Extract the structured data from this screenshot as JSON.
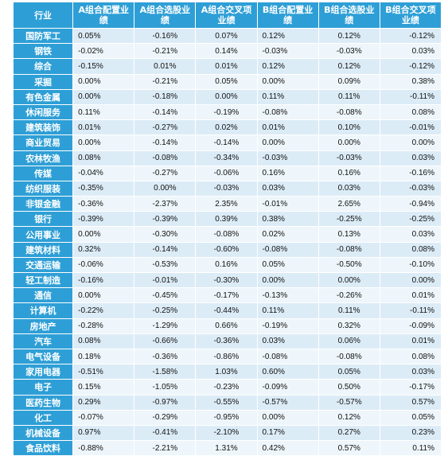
{
  "headers": [
    "行业",
    "A组合配置业绩",
    "A组合选股业绩",
    "A组合交叉项业绩",
    "B组合配置业绩",
    "B组合选股业绩",
    "B组合交叉项业绩"
  ],
  "rows": [
    {
      "industry": "国防军工",
      "values": [
        "0.05%",
        "-0.16%",
        "0.07%",
        "0.12%",
        "0.12%",
        "-0.12%"
      ]
    },
    {
      "industry": "钢铁",
      "values": [
        "-0.02%",
        "-0.21%",
        "0.14%",
        "-0.03%",
        "-0.03%",
        "0.03%"
      ]
    },
    {
      "industry": "综合",
      "values": [
        "-0.15%",
        "0.01%",
        "0.01%",
        "0.12%",
        "0.12%",
        "-0.12%"
      ]
    },
    {
      "industry": "采掘",
      "values": [
        "0.00%",
        "-0.21%",
        "0.05%",
        "0.00%",
        "0.09%",
        "0.38%"
      ]
    },
    {
      "industry": "有色金属",
      "values": [
        "0.00%",
        "-0.18%",
        "0.00%",
        "0.11%",
        "0.11%",
        "-0.11%"
      ]
    },
    {
      "industry": "休闲服务",
      "values": [
        "0.11%",
        "-0.14%",
        "-0.19%",
        "-0.08%",
        "-0.08%",
        "0.08%"
      ]
    },
    {
      "industry": "建筑装饰",
      "values": [
        "0.01%",
        "-0.27%",
        "0.02%",
        "0.01%",
        "0.10%",
        "-0.01%"
      ]
    },
    {
      "industry": "商业贸易",
      "values": [
        "0.00%",
        "-0.14%",
        "-0.14%",
        "0.00%",
        "0.00%",
        "0.00%"
      ]
    },
    {
      "industry": "农林牧渔",
      "values": [
        "0.08%",
        "-0.08%",
        "-0.34%",
        "-0.03%",
        "-0.03%",
        "0.03%"
      ]
    },
    {
      "industry": "传媒",
      "values": [
        "-0.04%",
        "-0.27%",
        "-0.06%",
        "0.16%",
        "0.16%",
        "-0.16%"
      ]
    },
    {
      "industry": "纺织服装",
      "values": [
        "-0.35%",
        "0.00%",
        "-0.03%",
        "0.03%",
        "0.03%",
        "-0.03%"
      ]
    },
    {
      "industry": "非银金融",
      "values": [
        "-0.36%",
        "-2.37%",
        "2.35%",
        "-0.01%",
        "2.65%",
        "-0.94%"
      ]
    },
    {
      "industry": "银行",
      "values": [
        "-0.39%",
        "-0.39%",
        "0.39%",
        "0.38%",
        "-0.25%",
        "-0.25%"
      ]
    },
    {
      "industry": "公用事业",
      "values": [
        "0.00%",
        "-0.30%",
        "-0.08%",
        "0.02%",
        "0.13%",
        "0.03%"
      ]
    },
    {
      "industry": "建筑材料",
      "values": [
        "0.32%",
        "-0.14%",
        "-0.60%",
        "-0.08%",
        "-0.08%",
        "0.08%"
      ]
    },
    {
      "industry": "交通运输",
      "values": [
        "-0.06%",
        "-0.53%",
        "0.16%",
        "0.05%",
        "-0.50%",
        "-0.10%"
      ]
    },
    {
      "industry": "轻工制造",
      "values": [
        "-0.16%",
        "-0.01%",
        "-0.30%",
        "0.00%",
        "0.00%",
        "0.00%"
      ]
    },
    {
      "industry": "通信",
      "values": [
        "0.00%",
        "-0.45%",
        "-0.17%",
        "-0.13%",
        "-0.26%",
        "0.01%"
      ]
    },
    {
      "industry": "计算机",
      "values": [
        "-0.22%",
        "-0.25%",
        "-0.44%",
        "0.11%",
        "0.11%",
        "-0.11%"
      ]
    },
    {
      "industry": "房地产",
      "values": [
        "-0.28%",
        "-1.29%",
        "0.66%",
        "-0.19%",
        "0.32%",
        "-0.09%"
      ]
    },
    {
      "industry": "汽车",
      "values": [
        "0.08%",
        "-0.66%",
        "-0.36%",
        "0.03%",
        "0.06%",
        "0.01%"
      ]
    },
    {
      "industry": "电气设备",
      "values": [
        "0.18%",
        "-0.36%",
        "-0.86%",
        "-0.08%",
        "-0.08%",
        "0.08%"
      ]
    },
    {
      "industry": "家用电器",
      "values": [
        "-0.51%",
        "-1.58%",
        "1.03%",
        "0.60%",
        "0.05%",
        "0.03%"
      ]
    },
    {
      "industry": "电子",
      "values": [
        "0.15%",
        "-1.05%",
        "-0.23%",
        "-0.09%",
        "0.50%",
        "-0.17%"
      ]
    },
    {
      "industry": "医药生物",
      "values": [
        "0.29%",
        "-0.97%",
        "-0.55%",
        "-0.57%",
        "-0.57%",
        "0.57%"
      ]
    },
    {
      "industry": "化工",
      "values": [
        "-0.07%",
        "-0.29%",
        "-0.95%",
        "0.00%",
        "0.12%",
        "0.05%"
      ]
    },
    {
      "industry": "机械设备",
      "values": [
        "0.97%",
        "-0.41%",
        "-2.10%",
        "0.17%",
        "0.27%",
        "0.23%"
      ]
    },
    {
      "industry": "食品饮料",
      "values": [
        "-0.88%",
        "-2.21%",
        "1.31%",
        "0.42%",
        "0.57%",
        "0.11%"
      ]
    }
  ]
}
